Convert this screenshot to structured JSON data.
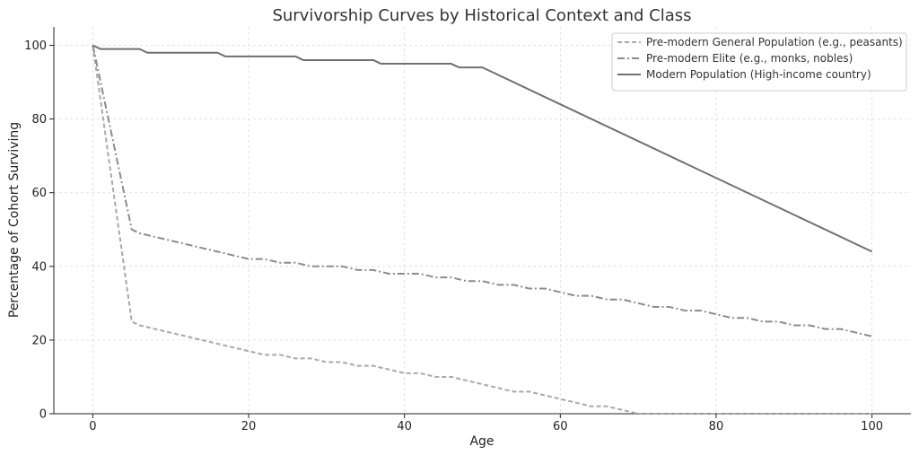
{
  "chart_data": {
    "type": "line",
    "title": "Survivorship Curves by Historical Context and Class",
    "xlabel": "Age",
    "ylabel": "Percentage of Cohort Surviving",
    "xlim": [
      -5,
      105
    ],
    "ylim": [
      0,
      105
    ],
    "xticks": [
      0,
      20,
      40,
      60,
      80,
      100
    ],
    "yticks": [
      0,
      20,
      40,
      60,
      80,
      100
    ],
    "grid": true,
    "legend_position": "top-right",
    "series": [
      {
        "name": "Pre-modern General Population (e.g., peasants)",
        "color": "#a9a9a9",
        "dash": "dashed",
        "x": [
          0,
          1,
          2,
          3,
          4,
          5,
          6,
          8,
          10,
          12,
          14,
          16,
          18,
          20,
          22,
          24,
          26,
          28,
          30,
          32,
          34,
          36,
          38,
          40,
          42,
          44,
          46,
          48,
          50,
          52,
          54,
          56,
          58,
          60,
          62,
          64,
          66,
          68,
          70,
          75,
          80,
          85,
          90,
          95,
          100
        ],
        "y": [
          100,
          85,
          70,
          55,
          40,
          25,
          24,
          23,
          22,
          21,
          20,
          19,
          18,
          17,
          16,
          16,
          15,
          15,
          14,
          14,
          13,
          13,
          12,
          11,
          11,
          10,
          10,
          9,
          8,
          7,
          6,
          6,
          5,
          4,
          3,
          2,
          2,
          1,
          0,
          0,
          0,
          0,
          0,
          0,
          0
        ]
      },
      {
        "name": "Pre-modern Elite (e.g., monks, nobles)",
        "color": "#8c8c8c",
        "dash": "dashdot",
        "x": [
          0,
          5,
          6,
          8,
          10,
          12,
          14,
          16,
          18,
          20,
          22,
          24,
          26,
          28,
          30,
          32,
          34,
          36,
          38,
          40,
          42,
          44,
          46,
          48,
          50,
          52,
          54,
          56,
          58,
          60,
          62,
          64,
          66,
          68,
          70,
          72,
          74,
          76,
          78,
          80,
          82,
          84,
          86,
          88,
          90,
          92,
          94,
          96,
          98,
          100
        ],
        "y": [
          100,
          50,
          49,
          48,
          47,
          46,
          45,
          44,
          43,
          42,
          42,
          41,
          41,
          40,
          40,
          40,
          39,
          39,
          38,
          38,
          38,
          37,
          37,
          36,
          36,
          35,
          35,
          34,
          34,
          33,
          32,
          32,
          31,
          31,
          30,
          29,
          29,
          28,
          28,
          27,
          26,
          26,
          25,
          25,
          24,
          24,
          23,
          23,
          22,
          21
        ]
      },
      {
        "name": "Modern Population (High-income country)",
        "color": "#707070",
        "dash": "solid",
        "x": [
          0,
          1,
          6,
          7,
          16,
          17,
          26,
          27,
          36,
          37,
          46,
          47,
          50,
          100
        ],
        "y": [
          100,
          99,
          99,
          98,
          98,
          97,
          97,
          96,
          96,
          95,
          95,
          94,
          94,
          44
        ]
      }
    ]
  }
}
